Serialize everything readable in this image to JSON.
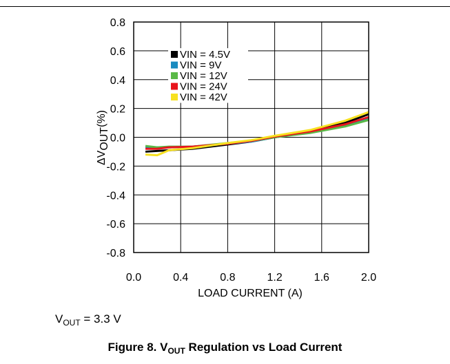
{
  "chart_data": {
    "type": "line",
    "xlabel": "LOAD CURRENT (A)",
    "ylabel_prefix": "ΔV",
    "ylabel_sub": "OUT",
    "ylabel_suffix": "(%)",
    "xlim": [
      0.0,
      2.0
    ],
    "ylim": [
      -0.8,
      0.8
    ],
    "x_ticks": [
      "0.0",
      "0.4",
      "0.8",
      "1.2",
      "1.6",
      "2.0"
    ],
    "y_ticks": [
      "0.8",
      "0.6",
      "0.4",
      "0.2",
      "0.0",
      "-0.2",
      "-0.4",
      "-0.6",
      "-0.8"
    ],
    "grid": true,
    "legend_position": "top-left",
    "series": [
      {
        "name": "VIN = 4.5V",
        "color": "#000000",
        "x": [
          0.1,
          0.2,
          0.3,
          0.5,
          0.8,
          1.0,
          1.2,
          1.5,
          1.8,
          2.0
        ],
        "y": [
          -0.1,
          -0.095,
          -0.09,
          -0.08,
          -0.05,
          -0.03,
          0.0,
          0.04,
          0.1,
          0.16
        ]
      },
      {
        "name": "VIN = 9V",
        "color": "#1a8bbf",
        "x": [
          0.1,
          0.2,
          0.3,
          0.5,
          0.8,
          1.0,
          1.2,
          1.5,
          1.8,
          2.0
        ],
        "y": [
          -0.07,
          -0.07,
          -0.07,
          -0.065,
          -0.045,
          -0.03,
          0.0,
          0.035,
          0.08,
          0.13
        ]
      },
      {
        "name": "VIN = 12V",
        "color": "#5ab947",
        "x": [
          0.1,
          0.2,
          0.3,
          0.5,
          0.8,
          1.0,
          1.2,
          1.5,
          1.8,
          2.0
        ],
        "y": [
          -0.06,
          -0.07,
          -0.065,
          -0.065,
          -0.04,
          -0.025,
          0.0,
          0.03,
          0.075,
          0.12
        ]
      },
      {
        "name": "VIN = 24V",
        "color": "#e8141c",
        "x": [
          0.1,
          0.2,
          0.3,
          0.5,
          0.8,
          1.0,
          1.2,
          1.5,
          1.8,
          2.0
        ],
        "y": [
          -0.08,
          -0.08,
          -0.07,
          -0.065,
          -0.045,
          -0.025,
          0.005,
          0.04,
          0.09,
          0.14
        ]
      },
      {
        "name": "VIN = 42V",
        "color": "#f7e120",
        "x": [
          0.1,
          0.2,
          0.3,
          0.5,
          0.8,
          1.0,
          1.2,
          1.5,
          1.8,
          2.0
        ],
        "y": [
          -0.12,
          -0.125,
          -0.09,
          -0.075,
          -0.04,
          -0.02,
          0.01,
          0.05,
          0.115,
          0.175
        ]
      }
    ]
  },
  "note": {
    "prefix": "V",
    "sub": "OUT",
    "suffix": " = 3.3 V"
  },
  "caption": {
    "prefix": "Figure 8. V",
    "sub": "OUT",
    "suffix": " Regulation vs Load Current"
  }
}
